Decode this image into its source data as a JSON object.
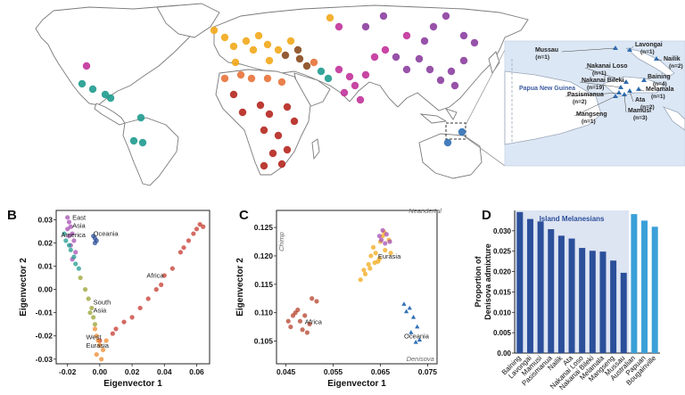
{
  "panels": {
    "B": "B",
    "C": "C",
    "D": "D"
  },
  "map": {
    "sample_colors": {
      "africa": "#b5271f",
      "europe": "#f2a91b",
      "middle_east": "#e8723a",
      "east_asia": "#8c3fa0",
      "south_asia": "#c2329a",
      "america": "#1f9b8f",
      "oceania": "#2f6fb4",
      "central_asia": "#8a4a1e"
    },
    "inset": {
      "region_label": "Papua New Guinea",
      "sites": [
        {
          "name": "Mussau",
          "n": "(n=1)"
        },
        {
          "name": "Lavongai",
          "n": "(n=1)"
        },
        {
          "name": "Nailik",
          "n": "(n=2)"
        },
        {
          "name": "Nakanai Loso",
          "n": "(n=1)"
        },
        {
          "name": "Baining",
          "n": "(n=4)"
        },
        {
          "name": "Nakanai Bileki",
          "n": "(n=19)"
        },
        {
          "name": "Melamala",
          "n": "(n=1)"
        },
        {
          "name": "Ata",
          "n": "(n=2)"
        },
        {
          "name": "Pasismanua",
          "n": "(n=2)"
        },
        {
          "name": "Mamusi",
          "n": "(n=3)"
        },
        {
          "name": "Mangseng",
          "n": "(n=1)"
        }
      ]
    }
  },
  "chart_data": [
    {
      "panel": "B",
      "type": "scatter",
      "xlabel": "Eigenvector 1",
      "ylabel": "Eigenvector 2",
      "xlim": [
        -0.027,
        0.068
      ],
      "ylim": [
        -0.032,
        0.034
      ],
      "xticks": [
        "-0.02",
        "0.00",
        "0.02",
        "0.04",
        "0.06"
      ],
      "xtick_values": [
        -0.02,
        0,
        0.02,
        0.04,
        0.06
      ],
      "yticks": [
        "0.03",
        "0.02",
        "0.01",
        "0.00",
        "-0.01",
        "-0.02",
        "-0.03"
      ],
      "ytick_values": [
        0.03,
        0.02,
        0.01,
        0,
        -0.01,
        -0.02,
        -0.03
      ],
      "annotations": [
        {
          "text": "East",
          "x": -0.017,
          "y": 0.03
        },
        {
          "text": "Asia",
          "x": -0.017,
          "y": 0.0265
        },
        {
          "text": "America",
          "x": -0.024,
          "y": 0.0225
        },
        {
          "text": "Oceania",
          "x": -0.004,
          "y": 0.023
        },
        {
          "text": "Africa",
          "x": 0.029,
          "y": 0.005
        },
        {
          "text": "South",
          "x": -0.004,
          "y": -0.0065
        },
        {
          "text": "Asia",
          "x": -0.004,
          "y": -0.01
        },
        {
          "text": "West",
          "x": -0.0085,
          "y": -0.0215
        },
        {
          "text": "Eurasia",
          "x": -0.0085,
          "y": -0.025
        }
      ],
      "series": [
        {
          "name": "Africa",
          "color": "#c63a2f",
          "x": [
            0.0,
            0.01,
            0.02,
            0.03,
            0.04,
            0.05,
            0.055,
            0.06,
            0.062,
            0.058,
            0.045,
            0.035,
            0.025,
            0.015,
            0.008,
            0.064,
            0.052,
            0.038
          ],
          "y": [
            -0.022,
            -0.017,
            -0.012,
            -0.004,
            0.006,
            0.016,
            0.021,
            0.026,
            0.028,
            0.024,
            0.009,
            0.0,
            -0.008,
            -0.014,
            -0.019,
            0.027,
            0.018,
            0.002
          ]
        },
        {
          "name": "East Asia",
          "color": "#a54fb2",
          "x": [
            -0.02,
            -0.019,
            -0.018,
            -0.02,
            -0.017,
            -0.016,
            -0.019,
            -0.018,
            -0.015,
            -0.017
          ],
          "y": [
            0.031,
            0.029,
            0.027,
            0.026,
            0.024,
            0.021,
            0.023,
            0.019,
            0.016,
            0.013
          ]
        },
        {
          "name": "America",
          "color": "#1f9b8f",
          "x": [
            -0.022,
            -0.021,
            -0.019,
            -0.018,
            -0.016,
            -0.015,
            -0.013
          ],
          "y": [
            0.024,
            0.021,
            0.019,
            0.017,
            0.014,
            0.011,
            0.009
          ]
        },
        {
          "name": "Oceania",
          "color": "#2b4f9a",
          "x": [
            -0.004,
            -0.003,
            -0.002,
            -0.003
          ],
          "y": [
            0.023,
            0.022,
            0.021,
            0.02
          ]
        },
        {
          "name": "South Asia",
          "color": "#9aa232",
          "x": [
            -0.012,
            -0.009,
            -0.007,
            -0.005,
            -0.004,
            -0.003,
            -0.006
          ],
          "y": [
            0.005,
            0.0,
            -0.004,
            -0.008,
            -0.012,
            -0.015,
            -0.01
          ]
        },
        {
          "name": "West Eurasia",
          "color": "#ef8a2c",
          "x": [
            -0.003,
            -0.002,
            -0.001,
            0.0,
            0.002,
            -0.002,
            0.001,
            0.004
          ],
          "y": [
            -0.017,
            -0.02,
            -0.022,
            -0.024,
            -0.026,
            -0.028,
            -0.03,
            -0.022
          ]
        }
      ]
    },
    {
      "panel": "C",
      "type": "scatter",
      "xlabel": "Eigenvector 1",
      "ylabel": "Eigenvector 2",
      "xlim": [
        0.043,
        0.077
      ],
      "ylim": [
        0.101,
        0.128
      ],
      "xticks": [
        "0.045",
        "0.055",
        "0.065",
        "0.075"
      ],
      "xtick_values": [
        0.045,
        0.055,
        0.065,
        0.075
      ],
      "yticks": [
        "0.125",
        "0.120",
        "0.115",
        "0.110",
        "0.105"
      ],
      "ytick_values": [
        0.125,
        0.12,
        0.115,
        0.11,
        0.105
      ],
      "annotations": [
        {
          "text": "Neandertal",
          "x": 0.071,
          "y": 0.1275
        },
        {
          "text": "Chimp",
          "x": 0.0445,
          "y": 0.1225
        },
        {
          "text": "Eurasia",
          "x": 0.0645,
          "y": 0.1195
        },
        {
          "text": "Africa",
          "x": 0.049,
          "y": 0.108
        },
        {
          "text": "Oceania",
          "x": 0.07,
          "y": 0.1055
        },
        {
          "text": "Denisova",
          "x": 0.0705,
          "y": 0.1015
        }
      ],
      "series": [
        {
          "name": "Africa",
          "color": "#b5402b",
          "x": [
            0.0455,
            0.0465,
            0.047,
            0.048,
            0.0475,
            0.049,
            0.05,
            0.0515,
            0.0485,
            0.0495,
            0.0505,
            0.046
          ],
          "y": [
            0.1085,
            0.1095,
            0.11,
            0.1085,
            0.1105,
            0.1095,
            0.108,
            0.112,
            0.107,
            0.1065,
            0.1125,
            0.1075
          ]
        },
        {
          "name": "Eurasia",
          "color": "#f2a91b",
          "x": [
            0.0615,
            0.0625,
            0.063,
            0.0635,
            0.064,
            0.0645,
            0.065,
            0.0655,
            0.066,
            0.0648,
            0.0638,
            0.0658,
            0.0668,
            0.0672,
            0.0628,
            0.0618,
            0.0608
          ],
          "y": [
            0.1175,
            0.1185,
            0.12,
            0.1215,
            0.1205,
            0.119,
            0.1225,
            0.1235,
            0.121,
            0.1195,
            0.1188,
            0.1242,
            0.1228,
            0.1205,
            0.1178,
            0.1168,
            0.1158
          ]
        },
        {
          "name": "East Asia",
          "color": "#a54fb2",
          "x": [
            0.0648,
            0.0655,
            0.0663,
            0.067,
            0.066,
            0.0652
          ],
          "y": [
            0.1235,
            0.1245,
            0.1238,
            0.1225,
            0.1222,
            0.1228
          ]
        },
        {
          "name": "Oceania",
          "color": "#2f6fb4",
          "x": [
            0.07,
            0.0705,
            0.0712,
            0.072,
            0.0728,
            0.0715,
            0.0725,
            0.0733
          ],
          "y": [
            0.1115,
            0.1102,
            0.1108,
            0.1092,
            0.1075,
            0.1065,
            0.1048,
            0.1052
          ]
        }
      ]
    },
    {
      "panel": "D",
      "type": "bar",
      "title": "Island Melanesians",
      "ylabel": "Proportion of Denisova admixture",
      "ylim": [
        0,
        0.035
      ],
      "yticks": [
        "0.00",
        "0.005",
        "0.010",
        "0.015",
        "0.020",
        "0.025",
        "0.030"
      ],
      "ytick_values": [
        0,
        0.005,
        0.01,
        0.015,
        0.02,
        0.025,
        0.03
      ],
      "categories": [
        "Baining",
        "Lavongai",
        "Mamusi",
        "Pasismanua",
        "Nailik",
        "Ata",
        "Nakanai Loso",
        "Nakanai Bileki",
        "Melamala",
        "Mangseng",
        "Mussau",
        "Australian",
        "Papuan",
        "Bougainville"
      ],
      "values": [
        0.0346,
        0.0329,
        0.0323,
        0.0304,
        0.0288,
        0.0281,
        0.0258,
        0.0251,
        0.0249,
        0.0227,
        0.0197,
        0.0341,
        0.0325,
        0.031
      ],
      "colors": [
        "#2b4f9a",
        "#2b4f9a",
        "#2b4f9a",
        "#2b4f9a",
        "#2b4f9a",
        "#2b4f9a",
        "#2b4f9a",
        "#2b4f9a",
        "#2b4f9a",
        "#2b4f9a",
        "#2b4f9a",
        "#3aa0d8",
        "#3aa0d8",
        "#3aa0d8"
      ],
      "highlight_group": {
        "label": "Island Melanesians",
        "from": 0,
        "to": 10,
        "color": "#dde4f2"
      }
    }
  ]
}
